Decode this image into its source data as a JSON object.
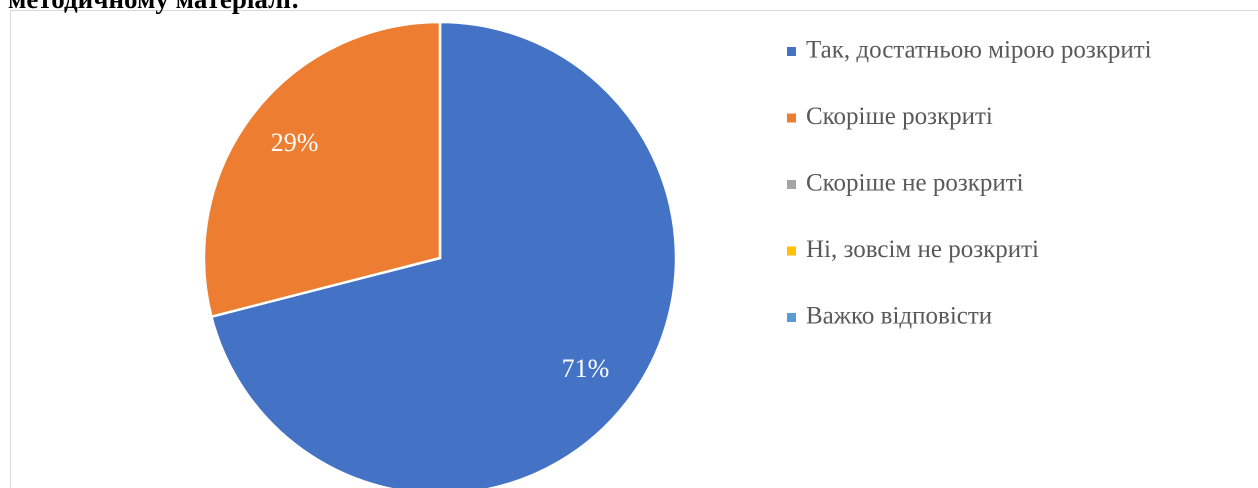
{
  "chart_data": {
    "type": "pie",
    "title": "методичному матеріалі:",
    "categories": [
      "Так, достатньою мірою розкриті",
      "Скоріше розкриті",
      "Скоріше не розкриті",
      "Ні, зовсім не розкриті",
      "Важко відповісти"
    ],
    "values": [
      71,
      29,
      0,
      0,
      0
    ],
    "value_labels": [
      "71%",
      "29%",
      null,
      null,
      null
    ],
    "colors": [
      "#4472c4",
      "#ed7d31",
      "#a5a5a5",
      "#ffc000",
      "#5b9bd5"
    ],
    "legend": "right"
  }
}
